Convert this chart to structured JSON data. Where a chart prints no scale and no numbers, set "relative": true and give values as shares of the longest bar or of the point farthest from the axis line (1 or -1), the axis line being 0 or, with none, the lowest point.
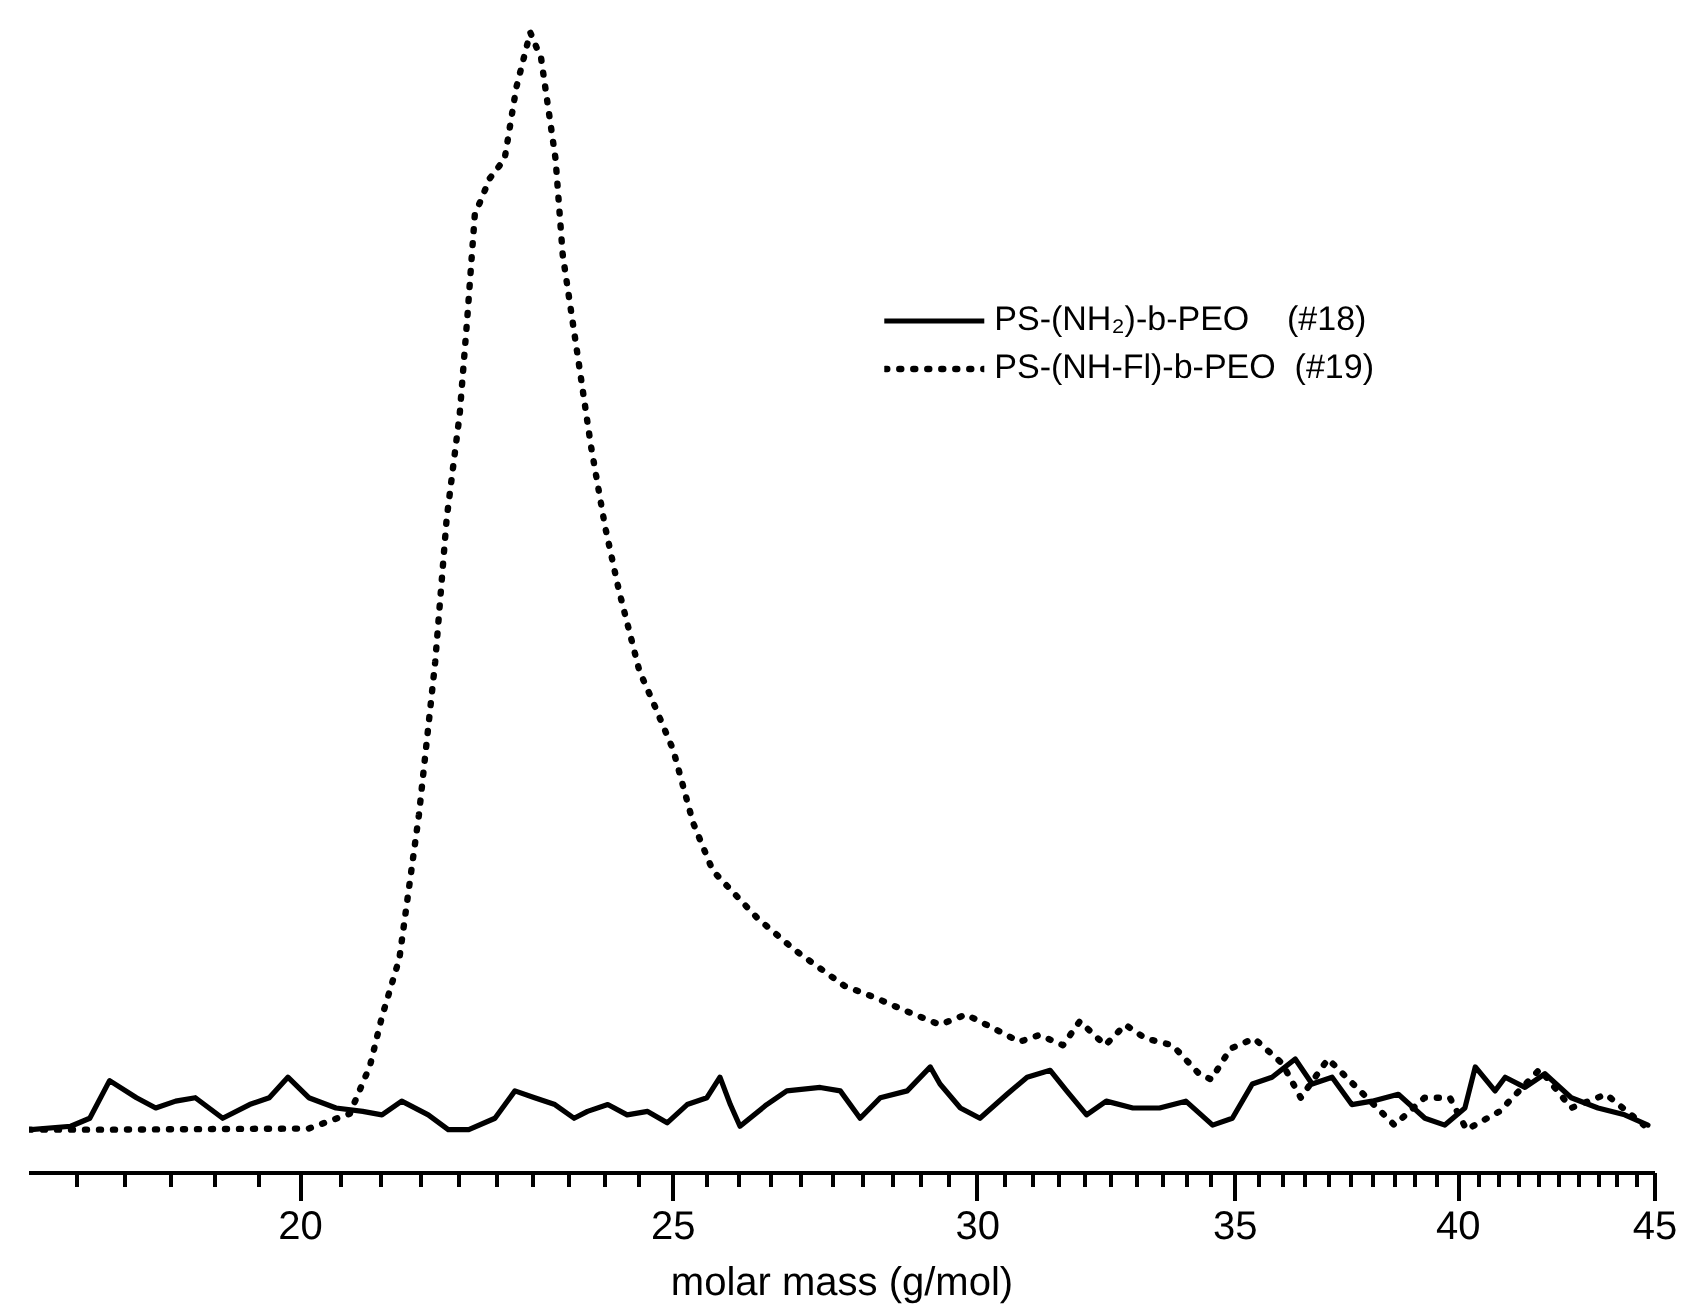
{
  "chart_data": {
    "type": "line",
    "xlabel": "molar mass (g/mol)",
    "relative": true,
    "log": "x",
    "xlim": [
      17,
      45
    ],
    "xticks": [
      {
        "value": 17.5,
        "label": null
      },
      {
        "value": 18,
        "label": null
      },
      {
        "value": 18.5,
        "label": null
      },
      {
        "value": 19,
        "label": null
      },
      {
        "value": 19.5,
        "label": null
      },
      20,
      {
        "value": 20.5,
        "label": null
      },
      {
        "value": 21,
        "label": null
      },
      {
        "value": 21.5,
        "label": null
      },
      {
        "value": 22,
        "label": null
      },
      {
        "value": 22.5,
        "label": null
      },
      {
        "value": 23,
        "label": null
      },
      {
        "value": 23.5,
        "label": null
      },
      {
        "value": 24,
        "label": null
      },
      {
        "value": 24.5,
        "label": null
      },
      25,
      {
        "value": 25.5,
        "label": null
      },
      {
        "value": 26,
        "label": null
      },
      {
        "value": 26.5,
        "label": null
      },
      {
        "value": 27,
        "label": null
      },
      {
        "value": 27.5,
        "label": null
      },
      {
        "value": 28,
        "label": null
      },
      {
        "value": 28.5,
        "label": null
      },
      {
        "value": 29,
        "label": null
      },
      {
        "value": 29.5,
        "label": null
      },
      30,
      {
        "value": 30.5,
        "label": null
      },
      {
        "value": 31,
        "label": null
      },
      {
        "value": 31.5,
        "label": null
      },
      {
        "value": 32,
        "label": null
      },
      {
        "value": 32.5,
        "label": null
      },
      {
        "value": 33,
        "label": null
      },
      {
        "value": 33.5,
        "label": null
      },
      {
        "value": 34,
        "label": null
      },
      {
        "value": 34.5,
        "label": null
      },
      35,
      {
        "value": 35.5,
        "label": null
      },
      {
        "value": 36,
        "label": null
      },
      {
        "value": 36.5,
        "label": null
      },
      {
        "value": 37,
        "label": null
      },
      {
        "value": 37.5,
        "label": null
      },
      {
        "value": 38,
        "label": null
      },
      {
        "value": 38.5,
        "label": null
      },
      {
        "value": 39,
        "label": null
      },
      {
        "value": 39.5,
        "label": null
      },
      40,
      {
        "value": 40.5,
        "label": null
      },
      {
        "value": 41,
        "label": null
      },
      {
        "value": 41.5,
        "label": null
      },
      {
        "value": 42,
        "label": null
      },
      {
        "value": 42.5,
        "label": null
      },
      {
        "value": 43,
        "label": null
      },
      {
        "value": 43.5,
        "label": null
      },
      {
        "value": 44,
        "label": null
      },
      {
        "value": 44.5,
        "label": null
      },
      45
    ],
    "grid": false,
    "legend": "top right",
    "marker": "none",
    "series": [
      {
        "name": "PS-(NH₂)-b-PEO    (#18)",
        "color": "#000000",
        "line_style": "solid",
        "x": [
          17.02,
          17.43,
          17.63,
          17.84,
          18.13,
          18.34,
          18.56,
          18.78,
          19.09,
          19.4,
          19.63,
          19.85,
          20.1,
          20.43,
          20.76,
          21.0,
          21.25,
          21.59,
          21.85,
          22.12,
          22.47,
          22.74,
          23.01,
          23.29,
          23.56,
          23.75,
          24.04,
          24.32,
          24.62,
          24.91,
          25.21,
          25.51,
          25.71,
          25.87,
          26.02,
          26.44,
          26.76,
          27.3,
          27.63,
          27.96,
          28.3,
          28.76,
          29.16,
          29.33,
          29.69,
          30.04,
          30.53,
          30.9,
          31.33,
          31.64,
          32.02,
          32.4,
          32.92,
          33.45,
          33.98,
          34.53,
          34.94,
          35.36,
          35.78,
          36.28,
          36.65,
          37.09,
          37.53,
          37.99,
          38.59,
          39.21,
          39.68,
          40.16,
          40.41,
          40.89,
          41.14,
          41.63,
          42.13,
          42.8,
          43.49,
          44.19,
          44.81
        ],
        "values": [
          0.038,
          0.041,
          0.048,
          0.081,
          0.066,
          0.057,
          0.063,
          0.066,
          0.048,
          0.06,
          0.066,
          0.084,
          0.066,
          0.057,
          0.054,
          0.051,
          0.063,
          0.051,
          0.038,
          0.038,
          0.048,
          0.072,
          0.066,
          0.06,
          0.048,
          0.054,
          0.06,
          0.051,
          0.054,
          0.044,
          0.06,
          0.066,
          0.084,
          0.06,
          0.041,
          0.06,
          0.072,
          0.075,
          0.072,
          0.048,
          0.066,
          0.072,
          0.093,
          0.078,
          0.057,
          0.048,
          0.069,
          0.084,
          0.09,
          0.072,
          0.051,
          0.063,
          0.057,
          0.057,
          0.063,
          0.042,
          0.048,
          0.078,
          0.084,
          0.1,
          0.078,
          0.084,
          0.06,
          0.063,
          0.069,
          0.048,
          0.042,
          0.057,
          0.093,
          0.072,
          0.084,
          0.075,
          0.087,
          0.066,
          0.057,
          0.051,
          0.042
        ]
      },
      {
        "name": "PS-(NH-Fl)-b-PEO  (#19)",
        "color": "#000000",
        "line_style": "dotted",
        "x": [
          17.0,
          17.84,
          20.1,
          20.6,
          20.85,
          21.0,
          21.22,
          21.47,
          21.68,
          21.83,
          22.0,
          22.1,
          22.2,
          22.4,
          22.6,
          22.76,
          22.95,
          23.1,
          23.3,
          23.4,
          23.6,
          23.8,
          24.0,
          24.2,
          24.5,
          24.7,
          25.0,
          25.3,
          25.6,
          26.3,
          26.9,
          27.7,
          28.2,
          28.74,
          29.33,
          29.79,
          30.4,
          30.76,
          31.13,
          31.57,
          31.89,
          32.38,
          32.77,
          33.17,
          33.71,
          34.25,
          34.5,
          34.9,
          35.4,
          36.0,
          36.4,
          37.0,
          38.5,
          39.2,
          39.8,
          40.2,
          41.0,
          42.0,
          42.8,
          43.7,
          44.7
        ],
        "values": [
          0.038,
          0.038,
          0.039,
          0.052,
          0.094,
          0.137,
          0.188,
          0.314,
          0.448,
          0.574,
          0.665,
          0.749,
          0.84,
          0.872,
          0.889,
          0.952,
          1.0,
          0.977,
          0.889,
          0.805,
          0.721,
          0.637,
          0.567,
          0.511,
          0.44,
          0.413,
          0.371,
          0.307,
          0.265,
          0.223,
          0.195,
          0.164,
          0.154,
          0.142,
          0.13,
          0.139,
          0.124,
          0.115,
          0.121,
          0.112,
          0.133,
          0.112,
          0.13,
          0.118,
          0.112,
          0.087,
          0.082,
          0.109,
          0.118,
          0.096,
          0.066,
          0.1,
          0.042,
          0.066,
          0.066,
          0.038,
          0.054,
          0.091,
          0.057,
          0.069,
          0.042
        ]
      }
    ]
  }
}
